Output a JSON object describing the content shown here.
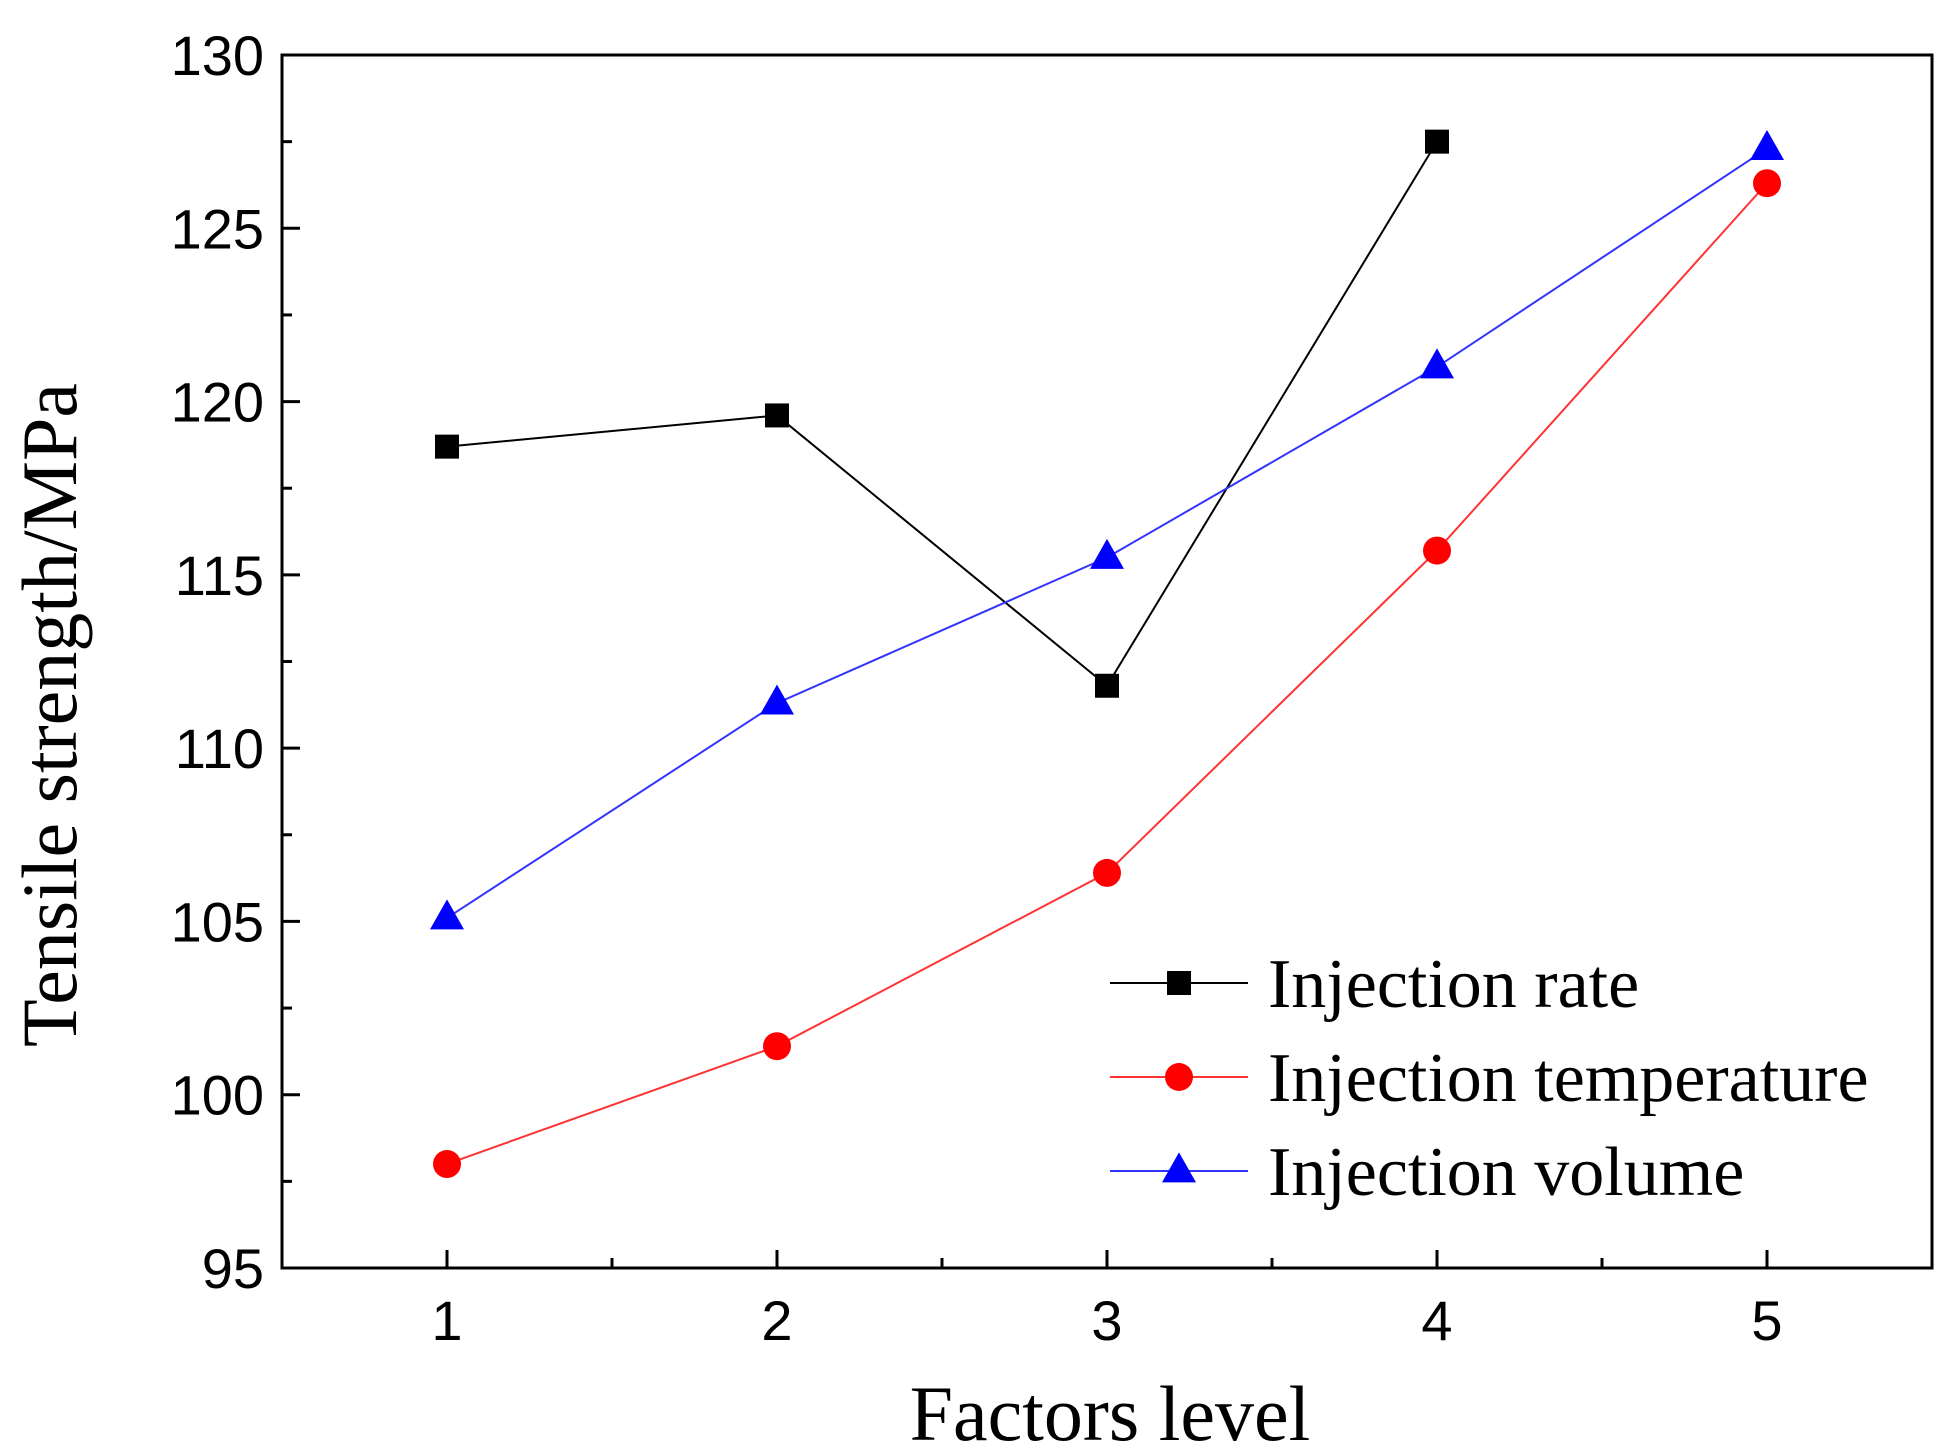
{
  "chart_data": {
    "type": "line",
    "title": "",
    "xlabel": "Factors level",
    "ylabel": "Tensile strength/MPa",
    "x": [
      1,
      2,
      3,
      4,
      5
    ],
    "xlim": [
      0.5,
      5.5
    ],
    "ylim": [
      95,
      130
    ],
    "xticks": [
      "1",
      "2",
      "3",
      "4",
      "5"
    ],
    "yticks": [
      "95",
      "100",
      "105",
      "110",
      "115",
      "120",
      "125",
      "130"
    ],
    "grid": false,
    "legend_position": "bottom-right",
    "series": [
      {
        "name": "Injection rate",
        "marker": "square",
        "color": "#000000",
        "line_color": "#000000",
        "x": [
          1,
          2,
          3,
          4
        ],
        "values": [
          118.7,
          119.6,
          111.8,
          127.5
        ]
      },
      {
        "name": "Injection temperature",
        "marker": "circle",
        "color": "#ff0000",
        "line_color": "#ff3333",
        "x": [
          1,
          2,
          3,
          4,
          5
        ],
        "values": [
          98.0,
          101.4,
          106.4,
          115.7,
          126.3
        ]
      },
      {
        "name": "Injection volume",
        "marker": "triangle",
        "color": "#0000ff",
        "line_color": "#3333ff",
        "x": [
          1,
          2,
          3,
          4,
          5
        ],
        "values": [
          105.1,
          111.3,
          115.5,
          121.0,
          127.3
        ]
      }
    ]
  }
}
